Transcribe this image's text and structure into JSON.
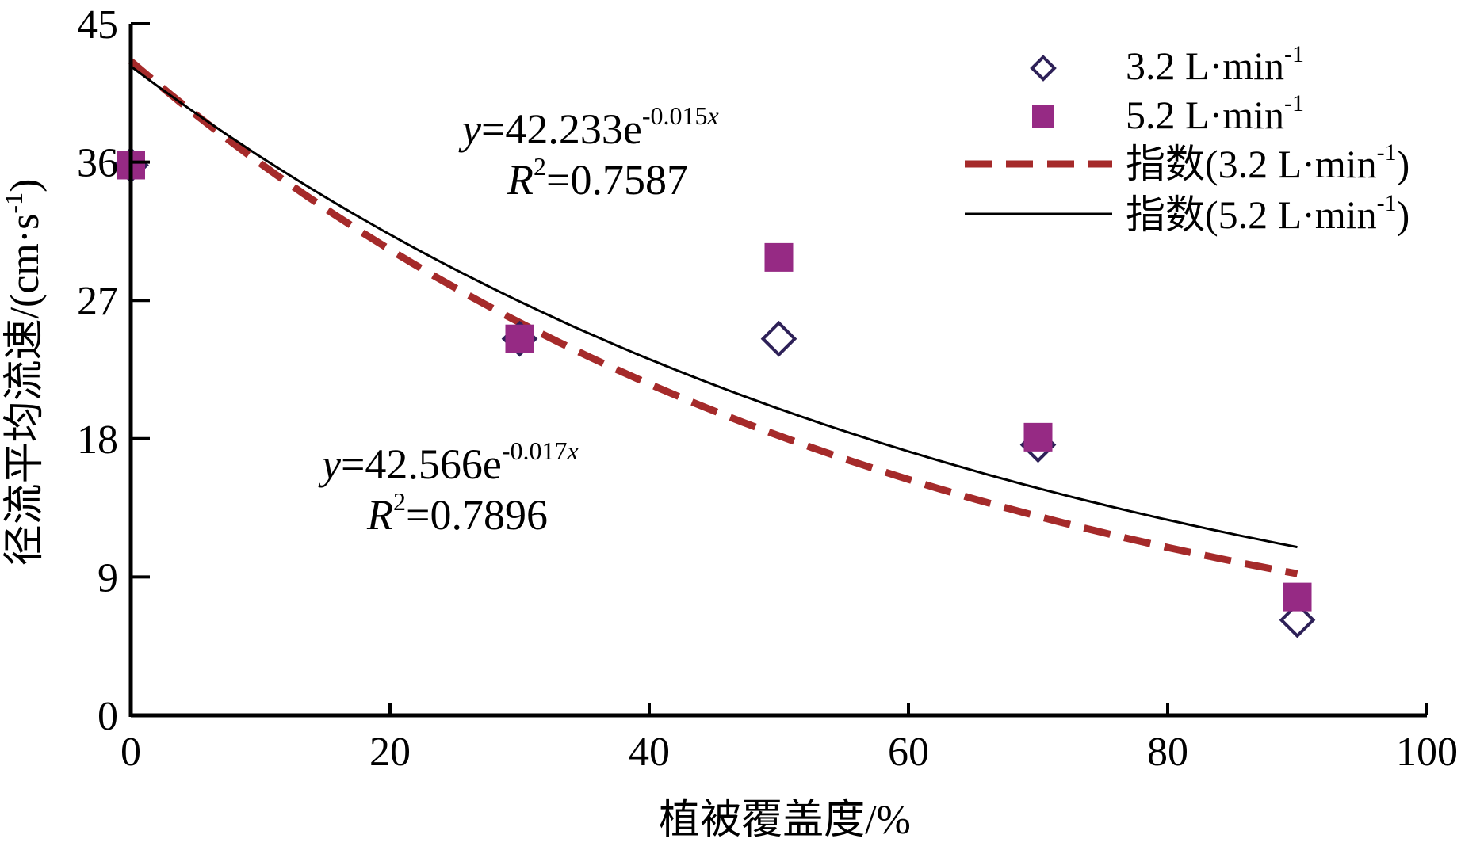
{
  "chart_data": {
    "type": "scatter",
    "xlabel": "植被覆盖度/%",
    "ylabel_main": "径流平均流速/(cm·s",
    "ylabel_sup": "-1",
    "ylabel_close": ")",
    "xlim": [
      0,
      100
    ],
    "ylim": [
      0,
      45
    ],
    "x_ticks": [
      0,
      20,
      40,
      60,
      80,
      100
    ],
    "y_ticks": [
      0,
      9,
      18,
      27,
      36,
      45
    ],
    "series": [
      {
        "name": "3.2 L·min",
        "name_sup": "-1",
        "kind": "scatter",
        "marker": "diamond-open",
        "color": "#2e2158",
        "x": [
          0,
          30,
          50,
          70,
          90
        ],
        "y": [
          35.8,
          24.5,
          24.5,
          17.6,
          6.2
        ]
      },
      {
        "name": "5.2 L·min",
        "name_sup": "-1",
        "kind": "scatter",
        "marker": "square-filled",
        "color": "#962a84",
        "x": [
          0,
          30,
          50,
          70,
          90
        ],
        "y": [
          35.8,
          24.5,
          29.8,
          18.1,
          7.7
        ]
      },
      {
        "name": "指数(3.2 L·min",
        "name_sup": "-1",
        "name_close": ")",
        "kind": "fit",
        "a": 42.566,
        "b": -0.017,
        "x_range": [
          0,
          90
        ],
        "style": "dashed",
        "color": "#a52a2a"
      },
      {
        "name": "指数(5.2 L·min",
        "name_sup": "-1",
        "name_close": ")",
        "kind": "fit",
        "a": 42.233,
        "b": -0.015,
        "x_range": [
          0,
          90
        ],
        "style": "solid",
        "color": "#000000"
      }
    ],
    "annotations": [
      {
        "eq_y": "y",
        "eq_main": "=42.233e",
        "eq_exp": "-0.015",
        "eq_x": "x",
        "r_label": "R",
        "r_exp": "2",
        "r_value": "=0.7587"
      },
      {
        "eq_y": "y",
        "eq_main": "=42.566e",
        "eq_exp": "-0.017",
        "eq_x": "x",
        "r_label": "R",
        "r_exp": "2",
        "r_value": "=0.7896"
      }
    ],
    "legend_position": "top-right",
    "grid": false
  }
}
